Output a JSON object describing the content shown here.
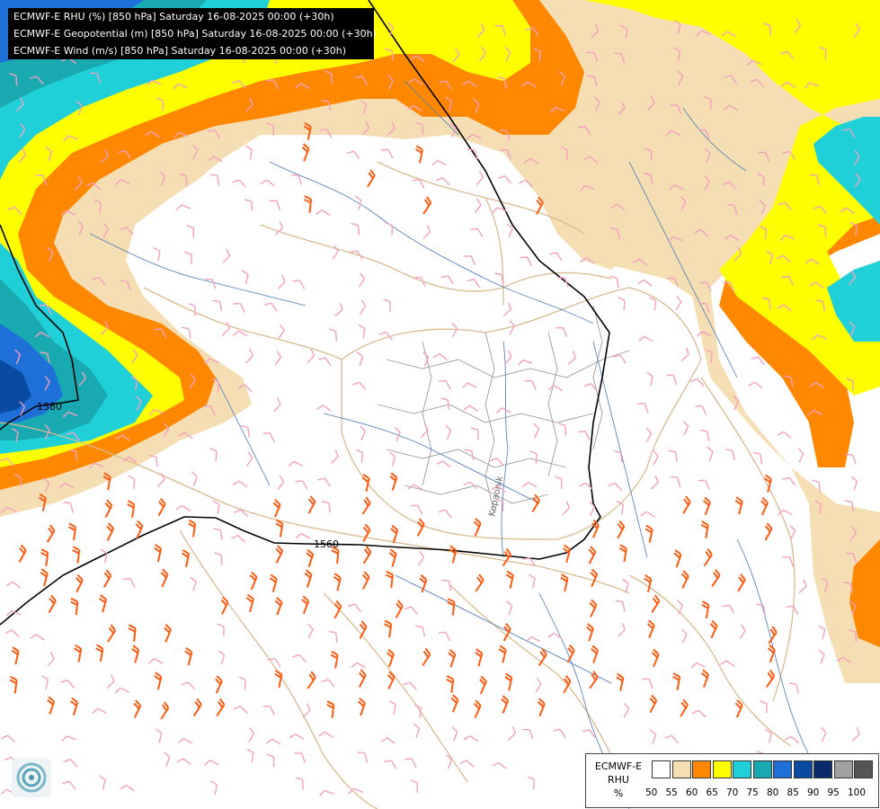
{
  "header": {
    "lines": [
      "ECMWF-E RHU (%) [850 hPa] Saturday 16-08-2025 00:00 (+30h)",
      "ECMWF-E Geopotential (m) [850 hPa] Saturday 16-08-2025 00:00 (+30h)",
      "ECMWF-E Wind (m/s) [850 hPa] Saturday 16-08-2025 00:00 (+30h)"
    ]
  },
  "contours": {
    "upper_label": "1580",
    "lower_label": "1560"
  },
  "river_label": "Kopaonik",
  "legend": {
    "title_lines": [
      "ECMWF-E",
      "RHU",
      "%"
    ],
    "classes": [
      {
        "value": "50",
        "color": "#ffffff"
      },
      {
        "value": "55",
        "color": "#f5deb3"
      },
      {
        "value": "60",
        "color": "#ff8800"
      },
      {
        "value": "65",
        "color": "#ffff00"
      },
      {
        "value": "70",
        "color": "#20d0d8"
      },
      {
        "value": "75",
        "color": "#18aab0"
      },
      {
        "value": "80",
        "color": "#1e6fd8"
      },
      {
        "value": "85",
        "color": "#0a4aa0"
      },
      {
        "value": "90",
        "color": "#0a2a6a"
      },
      {
        "value": "95",
        "color": "#a0a0a0"
      },
      {
        "value": "100",
        "color": "#555555"
      }
    ]
  },
  "colors": {
    "rhu_55": "#f5deb3",
    "rhu_60": "#ff8800",
    "rhu_65": "#ffff00",
    "rhu_70": "#20d0d8",
    "rhu_75": "#18aab0",
    "rhu_80": "#1e6fd8",
    "rhu_85": "#0a4aa0",
    "wind_light": "#f4a0c0",
    "wind_strong": "#ff5a10",
    "borders": "#d9bb90",
    "rivers": "#4a78b8",
    "admin": "#999999",
    "contour": "#000000"
  },
  "icons": [
    "ecmwf-logo-icon"
  ]
}
